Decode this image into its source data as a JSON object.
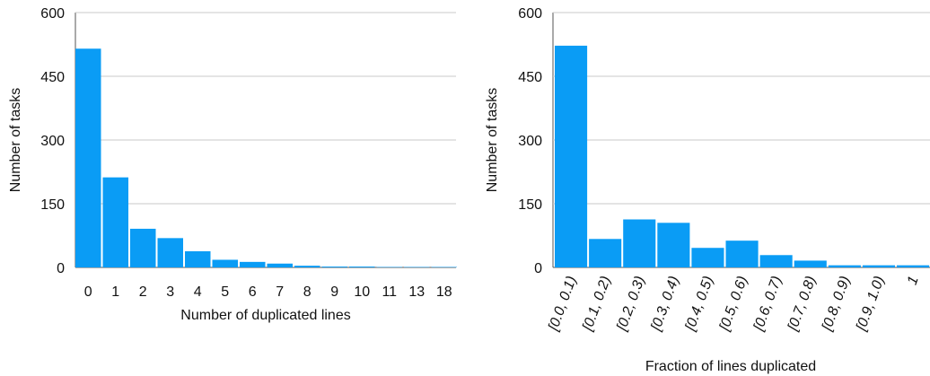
{
  "chart_data": [
    {
      "type": "bar",
      "xlabel": "Number of duplicated lines",
      "ylabel": "Number of tasks",
      "ylim": [
        0,
        600
      ],
      "yticks": [
        0,
        150,
        300,
        450,
        600
      ],
      "grid": true,
      "categories": [
        "0",
        "1",
        "2",
        "3",
        "4",
        "5",
        "6",
        "7",
        "8",
        "9",
        "10",
        "11",
        "13",
        "18"
      ],
      "values": [
        515,
        212,
        91,
        69,
        38,
        18,
        13,
        9,
        4,
        2,
        2,
        1,
        1,
        1
      ],
      "color": "#0a9cf5",
      "tick_style": "normal"
    },
    {
      "type": "bar",
      "xlabel": "Fraction of lines duplicated",
      "ylabel": "Number of tasks",
      "ylim": [
        0,
        600
      ],
      "yticks": [
        0,
        150,
        300,
        450,
        600
      ],
      "grid": true,
      "categories": [
        "[0.0, 0.1)",
        "[0.1, 0.2)",
        "[0.2, 0.3)",
        "[0.3, 0.4)",
        "[0.4, 0.5)",
        "[0.5, 0.6)",
        "[0.6, 0.7)",
        "[0.7, 0.8)",
        "[0.8, 0.9)",
        "[0.9, 1.0)",
        "1"
      ],
      "values": [
        522,
        67,
        113,
        105,
        46,
        63,
        29,
        16,
        5,
        5,
        5
      ],
      "color": "#0a9cf5",
      "tick_style": "rotated-italic"
    }
  ]
}
